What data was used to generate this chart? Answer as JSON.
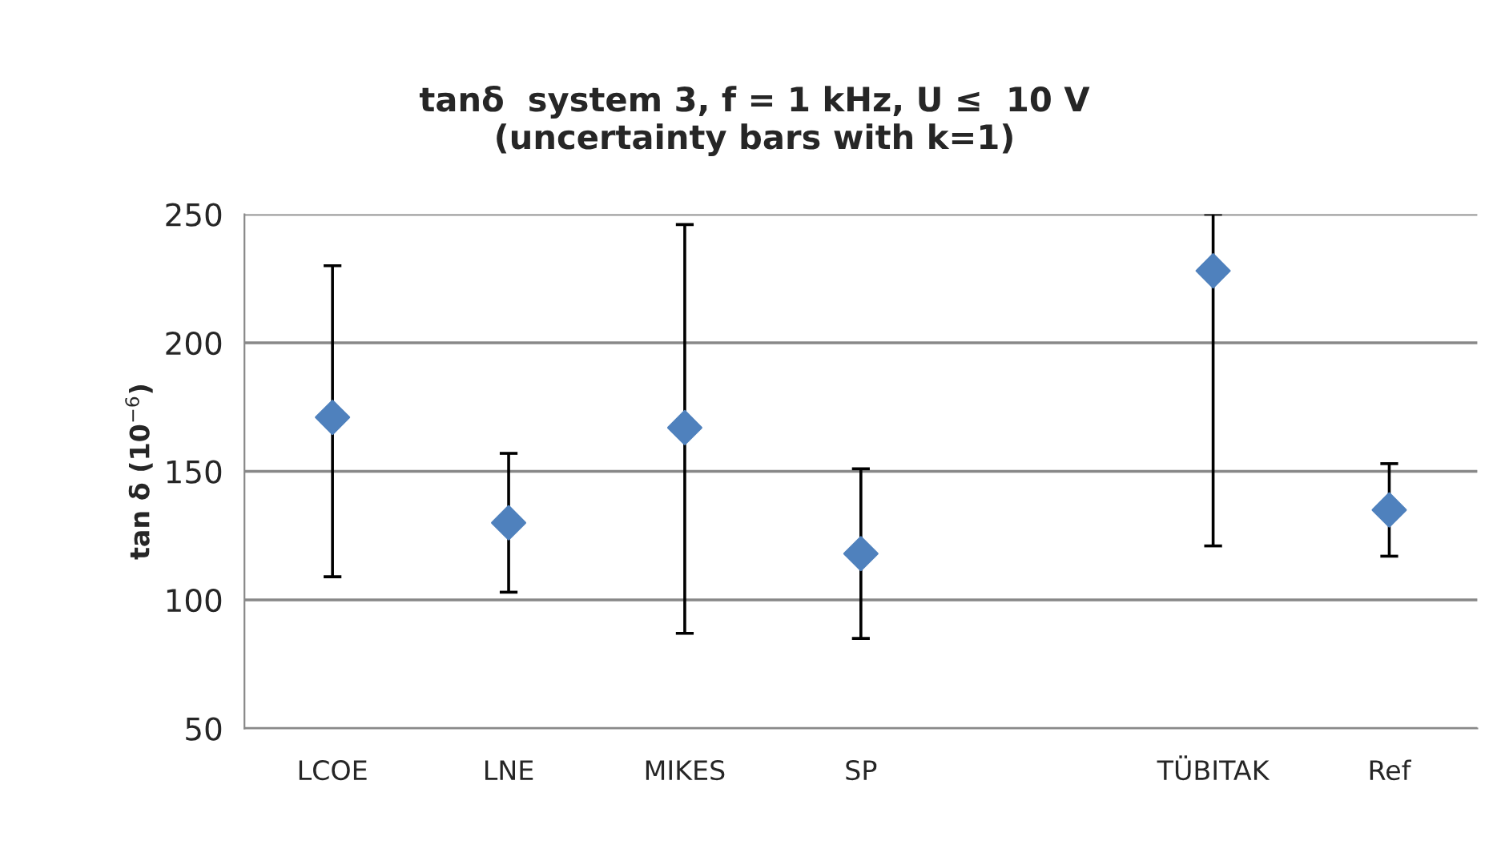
{
  "chart_data": {
    "type": "scatter",
    "title": "tanδ  system 3, f = 1 kHz, U ≤  10 V\n(uncertainty bars with k=1)",
    "ylabel": "tan δ (10$^{−6}$)",
    "categories": [
      "LCOE",
      "LNE",
      "MIKES",
      "SP",
      null,
      "TÜBITAK",
      "Ref"
    ],
    "values": [
      171,
      130,
      167,
      118,
      null,
      228,
      135
    ],
    "errors": [
      [
        109,
        230
      ],
      [
        103,
        157
      ],
      [
        87,
        246
      ],
      [
        85,
        151
      ],
      null,
      [
        121,
        250
      ],
      [
        117,
        153
      ]
    ],
    "color": "#4f81bd",
    "marker": "diamond",
    "ylim": [
      50,
      250
    ],
    "yticks": [
      50,
      100,
      150,
      200,
      250
    ],
    "grid": "y"
  }
}
